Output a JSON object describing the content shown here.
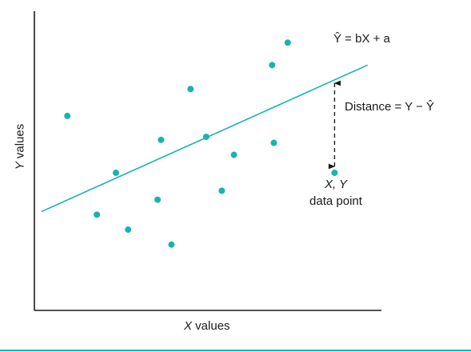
{
  "chart_data": {
    "type": "scatter",
    "title": "",
    "xlabel": "X values",
    "ylabel": "Y values",
    "xlim": [
      0,
      10
    ],
    "ylim": [
      0,
      10
    ],
    "grid": false,
    "axis_color": "#1a1a1a",
    "point_color": "#19b3ae",
    "line_color": "#19b3ae",
    "points": [
      {
        "x": 0.95,
        "y": 6.5
      },
      {
        "x": 1.8,
        "y": 3.2
      },
      {
        "x": 2.35,
        "y": 4.6
      },
      {
        "x": 2.7,
        "y": 2.7
      },
      {
        "x": 3.55,
        "y": 3.7
      },
      {
        "x": 3.65,
        "y": 5.7
      },
      {
        "x": 3.95,
        "y": 2.2
      },
      {
        "x": 4.5,
        "y": 7.4
      },
      {
        "x": 4.95,
        "y": 5.8
      },
      {
        "x": 5.4,
        "y": 4.0
      },
      {
        "x": 5.75,
        "y": 5.2
      },
      {
        "x": 6.9,
        "y": 5.6
      },
      {
        "x": 6.85,
        "y": 8.2
      },
      {
        "x": 7.3,
        "y": 8.95
      },
      {
        "x": 8.65,
        "y": 4.6
      }
    ],
    "regression_line": {
      "x": [
        0.2,
        9.6
      ],
      "y": [
        3.3,
        8.2
      ]
    },
    "distance_segment": {
      "x": 8.65,
      "y_from": 4.6,
      "y_to": 7.7
    },
    "annotations": {
      "equation": "Ŷ = bX + a",
      "distance": "Distance = Y − Ŷ",
      "point_line1": "X, Y",
      "point_line2": "data point"
    }
  }
}
